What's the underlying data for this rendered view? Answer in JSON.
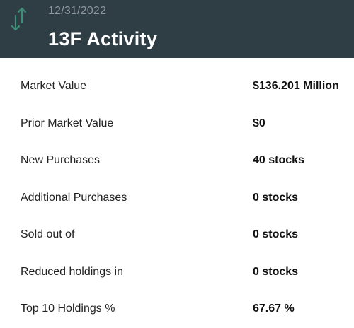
{
  "header": {
    "icon": "up-down-arrows-icon",
    "date": "12/31/2022",
    "title": "13F Activity",
    "background_color": "#2f3d45",
    "icon_color": "#3d8f78"
  },
  "rows": [
    {
      "label": "Market Value",
      "value": "$136.201 Million"
    },
    {
      "label": "Prior Market Value",
      "value": "$0"
    },
    {
      "label": "New Purchases",
      "value": "40 stocks"
    },
    {
      "label": "Additional Purchases",
      "value": "0 stocks"
    },
    {
      "label": "Sold out of",
      "value": "0 stocks"
    },
    {
      "label": "Reduced holdings in",
      "value": "0 stocks"
    },
    {
      "label": "Top 10 Holdings %",
      "value": "67.67 %"
    }
  ]
}
